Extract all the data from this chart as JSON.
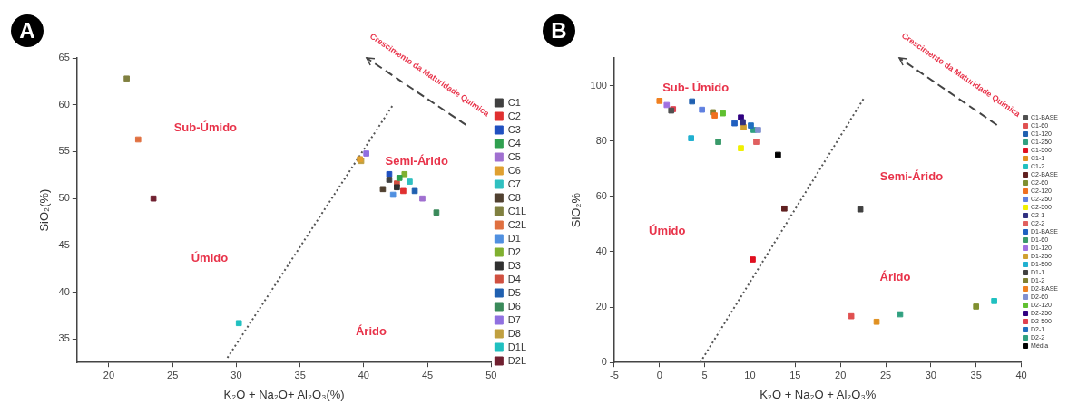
{
  "chart_data": [
    {
      "type": "scatter",
      "title": "A",
      "xlabel": "K₂O + Na₂O+ Al₂O₃(%)",
      "ylabel": "SiO₂(%)",
      "xlim": [
        17.5,
        50
      ],
      "ylim": [
        32.5,
        65
      ],
      "xticks": [
        20,
        25,
        30,
        35,
        40,
        45,
        50
      ],
      "yticks": [
        35,
        40,
        45,
        50,
        55,
        60,
        65
      ],
      "grid": false,
      "legend": "right",
      "marker": "square",
      "series": [
        {
          "name": "C1",
          "color": "#404040",
          "x": [
            42.0
          ],
          "values": [
            52.0
          ]
        },
        {
          "name": "C2",
          "color": "#e03030",
          "x": [
            43.1
          ],
          "values": [
            50.8
          ]
        },
        {
          "name": "C3",
          "color": "#2050c0",
          "x": [
            42.0
          ],
          "values": [
            52.6
          ]
        },
        {
          "name": "C4",
          "color": "#30a050",
          "x": [
            42.8
          ],
          "values": [
            52.2
          ]
        },
        {
          "name": "C5",
          "color": "#a070d0",
          "x": [
            44.6
          ],
          "values": [
            50.0
          ]
        },
        {
          "name": "C6",
          "color": "#e0a030",
          "x": [
            39.7
          ],
          "values": [
            54.2
          ]
        },
        {
          "name": "C7",
          "color": "#30c0c0",
          "x": [
            43.6
          ],
          "values": [
            51.8
          ]
        },
        {
          "name": "C8",
          "color": "#504030",
          "x": [
            41.5
          ],
          "values": [
            51.0
          ]
        },
        {
          "name": "C1L",
          "color": "#808040",
          "x": [
            21.4
          ],
          "values": [
            62.8
          ]
        },
        {
          "name": "C2L",
          "color": "#e07040",
          "x": [
            22.3
          ],
          "values": [
            56.3
          ]
        },
        {
          "name": "D1",
          "color": "#5090e0",
          "x": [
            42.3
          ],
          "values": [
            50.4
          ]
        },
        {
          "name": "D2",
          "color": "#80b030",
          "x": [
            43.2
          ],
          "values": [
            52.6
          ]
        },
        {
          "name": "D3",
          "color": "#303030",
          "x": [
            42.6
          ],
          "values": [
            51.2
          ]
        },
        {
          "name": "D4",
          "color": "#d05040",
          "x": [
            42.6
          ],
          "values": [
            51.6
          ]
        },
        {
          "name": "D5",
          "color": "#2060b0",
          "x": [
            44.0
          ],
          "values": [
            50.8
          ]
        },
        {
          "name": "D6",
          "color": "#3a8a5a",
          "x": [
            45.7
          ],
          "values": [
            48.5
          ]
        },
        {
          "name": "D7",
          "color": "#9070e0",
          "x": [
            40.2
          ],
          "values": [
            54.8
          ]
        },
        {
          "name": "D8",
          "color": "#c0a040",
          "x": [
            39.8
          ],
          "values": [
            54.0
          ]
        },
        {
          "name": "D1L",
          "color": "#20c0c0",
          "x": [
            30.2
          ],
          "values": [
            36.7
          ]
        },
        {
          "name": "D2L",
          "color": "#702030",
          "x": [
            23.5
          ],
          "values": [
            50.0
          ]
        },
        {
          "type": "line",
          "color": "#555555",
          "line_style": "dotted",
          "marker": "none",
          "x": [
            29.3,
            42.3
          ],
          "values": [
            33,
            60
          ]
        }
      ],
      "annotations": [
        "Sub-Úmido",
        "Semi-Árido",
        "Úmido",
        "Árido",
        "Crescimento da Maturidade Química"
      ]
    },
    {
      "type": "scatter",
      "title": "B",
      "xlabel": "K₂O + Na₂O + Al₂O₃%",
      "ylabel": "SiO₂%",
      "xlim": [
        -5,
        40
      ],
      "ylim": [
        0,
        110
      ],
      "xticks": [
        -5,
        0,
        5,
        10,
        15,
        20,
        25,
        30,
        35,
        40
      ],
      "yticks": [
        0,
        20,
        40,
        60,
        80,
        100
      ],
      "grid": false,
      "legend": "right",
      "marker": "square",
      "series": [
        {
          "name": "C1-BASE",
          "color": "#505050",
          "x": [
            1.3
          ],
          "values": [
            91
          ]
        },
        {
          "name": "C1-60",
          "color": "#e05050",
          "x": [
            21.2
          ],
          "values": [
            16.7
          ]
        },
        {
          "name": "C1-120",
          "color": "#2060b0",
          "x": [
            3.6
          ],
          "values": [
            94.3
          ]
        },
        {
          "name": "C1-250",
          "color": "#30a080",
          "x": [
            26.6
          ],
          "values": [
            17.4
          ]
        },
        {
          "name": "C1-500",
          "color": "#e01020",
          "x": [
            10.3
          ],
          "values": [
            37.2
          ]
        },
        {
          "name": "C1-1",
          "color": "#e09020",
          "x": [
            24
          ],
          "values": [
            14.7
          ]
        },
        {
          "name": "C1-2",
          "color": "#20c0c0",
          "x": [
            37
          ],
          "values": [
            22.2
          ]
        },
        {
          "name": "C2-BASE",
          "color": "#602020",
          "x": [
            13.8
          ],
          "values": [
            55.6
          ]
        },
        {
          "name": "C2-60",
          "color": "#809030",
          "x": [
            35
          ],
          "values": [
            20.2
          ]
        },
        {
          "name": "C2-120",
          "color": "#f07020",
          "x": [
            6.1
          ],
          "values": [
            89.2
          ]
        },
        {
          "name": "C2-250",
          "color": "#6080e0",
          "x": [
            4.7
          ],
          "values": [
            91.3
          ]
        },
        {
          "name": "C2-500",
          "color": "#f0f000",
          "x": [
            9
          ],
          "values": [
            77.4
          ]
        },
        {
          "name": "C2-1",
          "color": "#303080",
          "x": [
            9.2
          ],
          "values": [
            86.8
          ]
        },
        {
          "name": "C2-2",
          "color": "#e06060",
          "x": [
            10.7
          ],
          "values": [
            79.7
          ]
        },
        {
          "name": "D1-BASE",
          "color": "#2060c0",
          "x": [
            8.3
          ],
          "values": [
            86.4
          ]
        },
        {
          "name": "D1-60",
          "color": "#3a9a6a",
          "x": [
            6.5
          ],
          "values": [
            79.7
          ]
        },
        {
          "name": "D1-120",
          "color": "#a070e0",
          "x": [
            0.8
          ],
          "values": [
            93
          ]
        },
        {
          "name": "D1-250",
          "color": "#d0a030",
          "x": [
            9.3
          ],
          "values": [
            85
          ]
        },
        {
          "name": "D1-500",
          "color": "#20b0d0",
          "x": [
            3.5
          ],
          "values": [
            81
          ]
        },
        {
          "name": "D1-1",
          "color": "#404040",
          "x": [
            22.2
          ],
          "values": [
            55.3
          ]
        },
        {
          "name": "D1-2",
          "color": "#808030",
          "x": [
            5.9
          ],
          "values": [
            90.4
          ]
        },
        {
          "name": "D2-BASE",
          "color": "#f08020",
          "x": [
            0
          ],
          "values": [
            94.5
          ]
        },
        {
          "name": "D2-60",
          "color": "#8090d0",
          "x": [
            10.9
          ],
          "values": [
            84
          ]
        },
        {
          "name": "D2-120",
          "color": "#60c030",
          "x": [
            7
          ],
          "values": [
            90
          ]
        },
        {
          "name": "D2-250",
          "color": "#300080",
          "x": [
            9.0
          ],
          "values": [
            88.5
          ]
        },
        {
          "name": "D2-500",
          "color": "#e04050",
          "x": [
            1.5
          ],
          "values": [
            91.5
          ]
        },
        {
          "name": "D2-1",
          "color": "#2070c0",
          "x": [
            10.1
          ],
          "values": [
            85.6
          ]
        },
        {
          "name": "D2-2",
          "color": "#30a080",
          "x": [
            10.4
          ],
          "values": [
            84
          ]
        },
        {
          "name": "Média",
          "color": "#000000",
          "x": [
            13.1
          ],
          "values": [
            75
          ]
        },
        {
          "type": "line",
          "color": "#555555",
          "line_style": "dotted",
          "marker": "none",
          "x": [
            4.5,
            22.7
          ],
          "values": [
            0,
            96
          ]
        }
      ],
      "annotations": [
        "Sub- Úmido",
        "Semi-Árido",
        "Úmido",
        "Árido",
        "Crescimento da Maturidade Química"
      ]
    }
  ]
}
